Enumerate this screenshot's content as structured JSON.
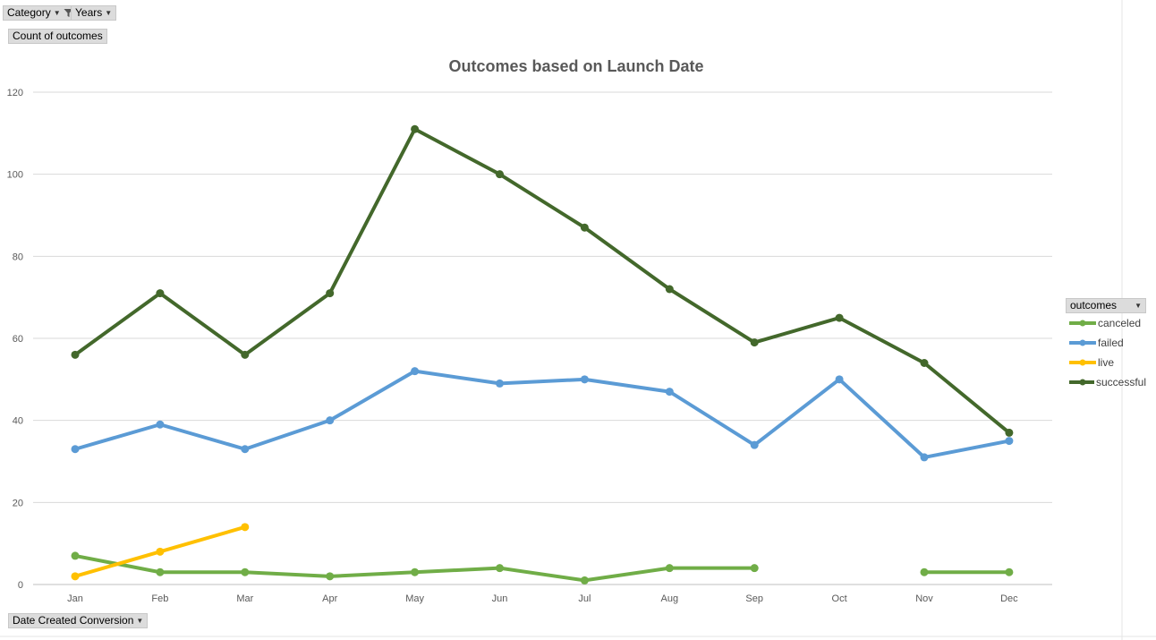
{
  "filters": {
    "category_label": "Category",
    "years_label": "Years",
    "values_label": "Count of outcomes",
    "axis_field_label": "Date Created Conversion"
  },
  "legend": {
    "title": "outcomes"
  },
  "chart_data": {
    "type": "line",
    "title": "Outcomes based on Launch Date",
    "xlabel": "",
    "ylabel": "",
    "ylim": [
      0,
      120
    ],
    "yticks": [
      0,
      20,
      40,
      60,
      80,
      100,
      120
    ],
    "grid": true,
    "legend_position": "right",
    "categories": [
      "Jan",
      "Feb",
      "Mar",
      "Apr",
      "May",
      "Jun",
      "Jul",
      "Aug",
      "Sep",
      "Oct",
      "Nov",
      "Dec"
    ],
    "series": [
      {
        "name": "canceled",
        "color": "#70ad47",
        "values": [
          7,
          3,
          3,
          2,
          3,
          4,
          1,
          4,
          4,
          null,
          3,
          3
        ]
      },
      {
        "name": "failed",
        "color": "#5b9bd5",
        "values": [
          33,
          39,
          33,
          40,
          52,
          49,
          50,
          47,
          34,
          50,
          31,
          35
        ]
      },
      {
        "name": "live",
        "color": "#ffc000",
        "values": [
          2,
          8,
          14,
          null,
          null,
          null,
          null,
          null,
          null,
          null,
          null,
          null
        ]
      },
      {
        "name": "successful",
        "color": "#43682b",
        "values": [
          56,
          71,
          56,
          71,
          111,
          100,
          87,
          72,
          59,
          65,
          54,
          37
        ]
      }
    ]
  }
}
